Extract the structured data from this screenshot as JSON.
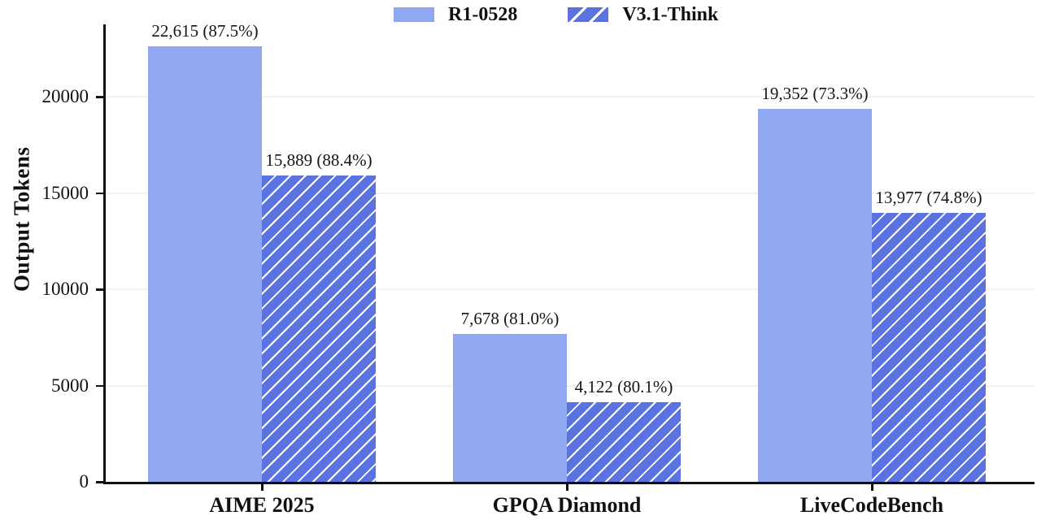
{
  "accent_colors": {
    "series_solid": "#8FA8F1",
    "series_hatched": "#5B73E0",
    "axis": "#111111",
    "gridline": "#f3f1f1"
  },
  "chart_data": {
    "type": "bar",
    "title": "",
    "xlabel": "",
    "ylabel": "Output Tokens",
    "grid": "horizontal, very faint",
    "legend_position": "top-center",
    "categories": [
      "AIME 2025",
      "GPQA Diamond",
      "LiveCodeBench"
    ],
    "series": [
      {
        "name": "R1-0528",
        "style": "solid",
        "values": [
          22615,
          7678,
          19352
        ],
        "accuracy_pct": [
          87.5,
          81.0,
          73.3
        ],
        "labels": [
          "22,615 (87.5%)",
          "7,678 (81.0%)",
          "19,352 (73.3%)"
        ]
      },
      {
        "name": "V3.1-Think",
        "style": "hatched-forward-slash",
        "values": [
          15889,
          4122,
          13977
        ],
        "accuracy_pct": [
          88.4,
          80.1,
          74.8
        ],
        "labels": [
          "15,889 (88.4%)",
          "4,122 (80.1%)",
          "13,977 (74.8%)"
        ]
      }
    ],
    "yticks": {
      "values": [
        0,
        5000,
        10000,
        15000,
        20000
      ],
      "labels": [
        "0",
        "5000",
        "10000",
        "15000",
        "20000"
      ]
    },
    "ylim": [
      0,
      23750
    ]
  }
}
